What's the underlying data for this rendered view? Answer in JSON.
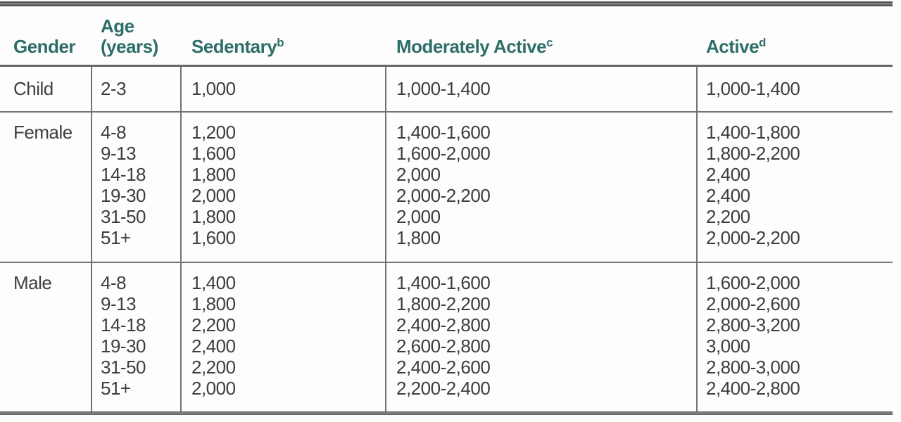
{
  "colors": {
    "header-text": "#2e6e69",
    "body-text": "#3e3e3e",
    "border": "#737373",
    "thick-rule": "#5f5f5f",
    "background": "#fdfdfd"
  },
  "table": {
    "columns": [
      {
        "id": "gender",
        "label": "Gender",
        "sup": ""
      },
      {
        "id": "age",
        "label": "Age\n(years)",
        "sup": ""
      },
      {
        "id": "sedentary",
        "label": "Sedentary",
        "sup": "b"
      },
      {
        "id": "moderately_active",
        "label": "Moderately Active",
        "sup": "c"
      },
      {
        "id": "active",
        "label": "Active",
        "sup": "d"
      }
    ],
    "groups": [
      {
        "gender": "Child",
        "rows": [
          {
            "age": "2-3",
            "sedentary": "1,000",
            "moderately_active": "1,000-1,400",
            "active": "1,000-1,400"
          }
        ]
      },
      {
        "gender": "Female",
        "rows": [
          {
            "age": "4-8",
            "sedentary": "1,200",
            "moderately_active": "1,400-1,600",
            "active": "1,400-1,800"
          },
          {
            "age": "9-13",
            "sedentary": "1,600",
            "moderately_active": "1,600-2,000",
            "active": "1,800-2,200"
          },
          {
            "age": "14-18",
            "sedentary": "1,800",
            "moderately_active": "2,000",
            "active": "2,400"
          },
          {
            "age": "19-30",
            "sedentary": "2,000",
            "moderately_active": "2,000-2,200",
            "active": "2,400"
          },
          {
            "age": "31-50",
            "sedentary": "1,800",
            "moderately_active": "2,000",
            "active": "2,200"
          },
          {
            "age": "51+",
            "sedentary": "1,600",
            "moderately_active": "1,800",
            "active": "2,000-2,200"
          }
        ]
      },
      {
        "gender": "Male",
        "rows": [
          {
            "age": "4-8",
            "sedentary": "1,400",
            "moderately_active": "1,400-1,600",
            "active": "1,600-2,000"
          },
          {
            "age": "9-13",
            "sedentary": "1,800",
            "moderately_active": "1,800-2,200",
            "active": "2,000-2,600"
          },
          {
            "age": "14-18",
            "sedentary": "2,200",
            "moderately_active": "2,400-2,800",
            "active": "2,800-3,200"
          },
          {
            "age": "19-30",
            "sedentary": "2,400",
            "moderately_active": "2,600-2,800",
            "active": "3,000"
          },
          {
            "age": "31-50",
            "sedentary": "2,200",
            "moderately_active": "2,400-2,600",
            "active": "2,800-3,000"
          },
          {
            "age": "51+",
            "sedentary": "2,000",
            "moderately_active": "2,200-2,400",
            "active": "2,400-2,800"
          }
        ]
      }
    ]
  }
}
